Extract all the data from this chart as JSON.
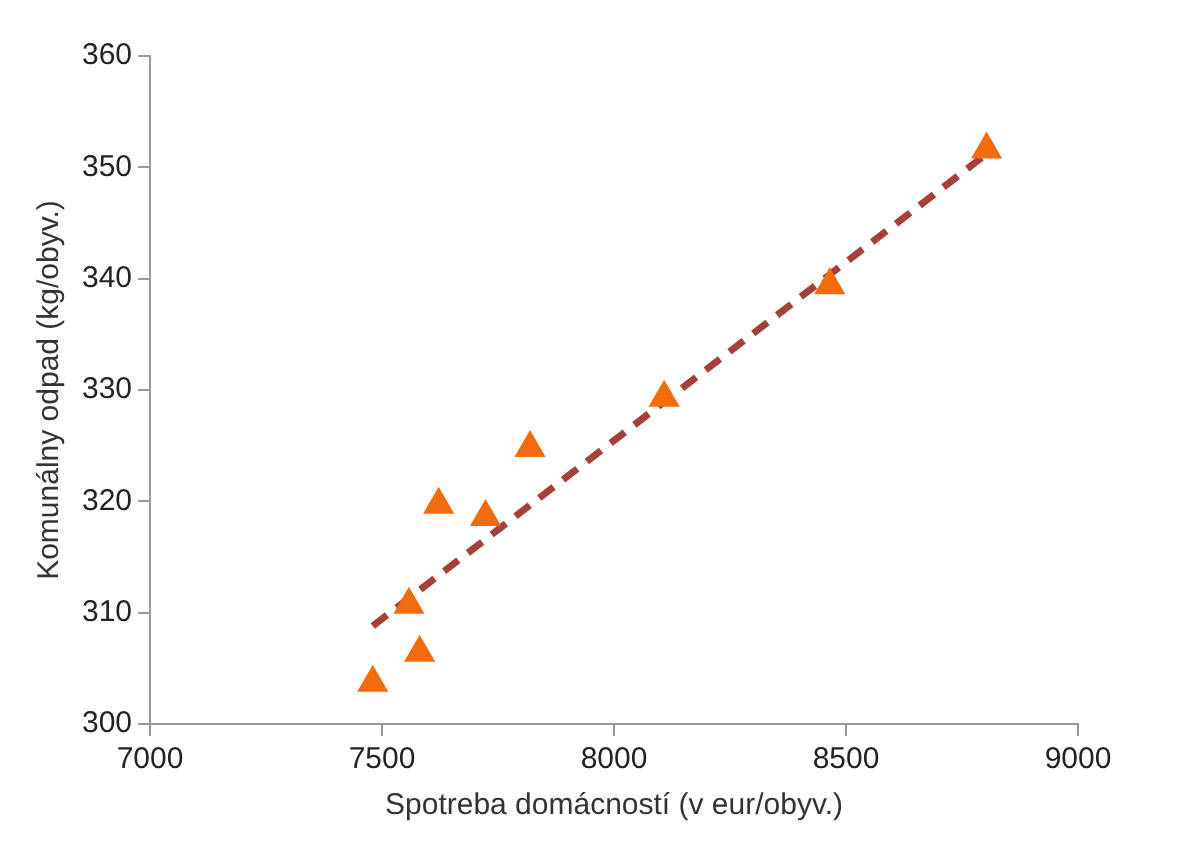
{
  "chart_data": {
    "type": "scatter",
    "xlabel": "Spotreba domácností (v eur/obyv.)",
    "ylabel": "Komunálny odpad (kg/obyv.)",
    "marker": "triangle",
    "grid": false,
    "legend": false,
    "xlim": [
      7000,
      9000
    ],
    "xticks": [
      7000,
      7500,
      8000,
      8500,
      9000
    ],
    "ylim": [
      300,
      360
    ],
    "yticks": [
      300,
      310,
      320,
      330,
      340,
      350,
      360
    ],
    "series": [
      {
        "type": "scatter",
        "color": "#f26b0f",
        "x": [
          7480,
          7558,
          7581,
          7622,
          7723,
          7819,
          8108,
          8465,
          8803
        ],
        "values": [
          303.7,
          310.7,
          306.4,
          319.7,
          318.6,
          324.8,
          329.3,
          339.4,
          351.6
        ]
      },
      {
        "type": "line",
        "color": "#a5403a",
        "line_style": "dashed",
        "marker": "none",
        "x": [
          7480,
          8803
        ],
        "values": [
          308.8,
          351.2
        ]
      }
    ]
  }
}
